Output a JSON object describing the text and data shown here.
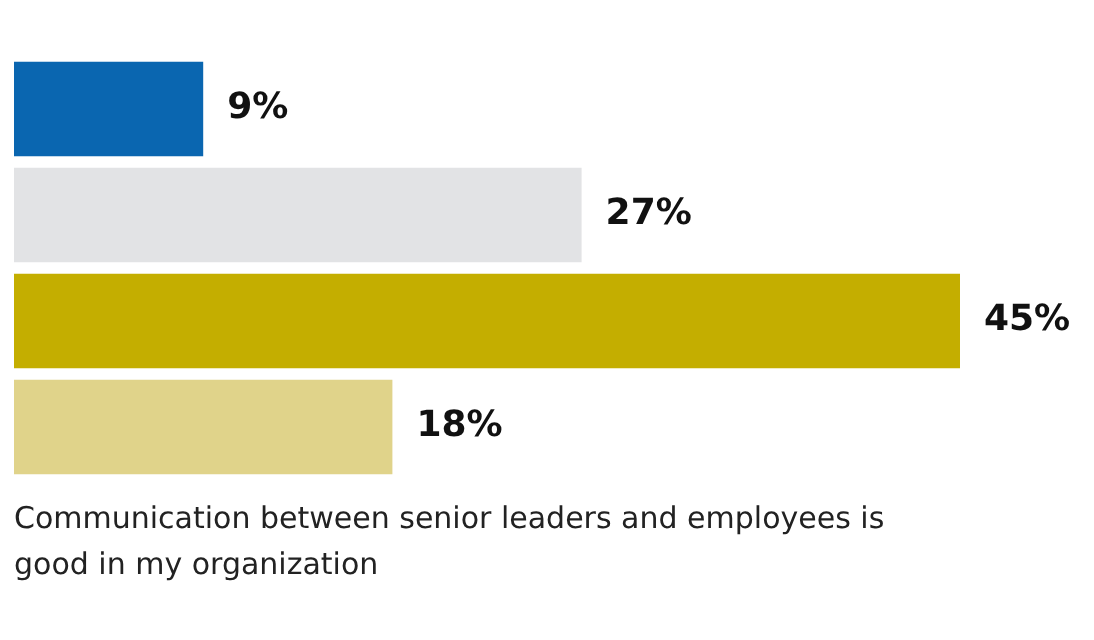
{
  "chart_data": {
    "type": "bar",
    "orientation": "horizontal",
    "categories": [
      null,
      null,
      null,
      null
    ],
    "values": [
      9,
      27,
      45,
      18
    ],
    "colors": [
      "#0a66b0",
      "#e2e3e5",
      "#c4ae00",
      "#e0d38a"
    ],
    "value_labels": [
      "9%",
      "27%",
      "45%",
      "18%"
    ],
    "annotations": [
      "Communication between senior leaders and employees is good in my organization"
    ]
  }
}
